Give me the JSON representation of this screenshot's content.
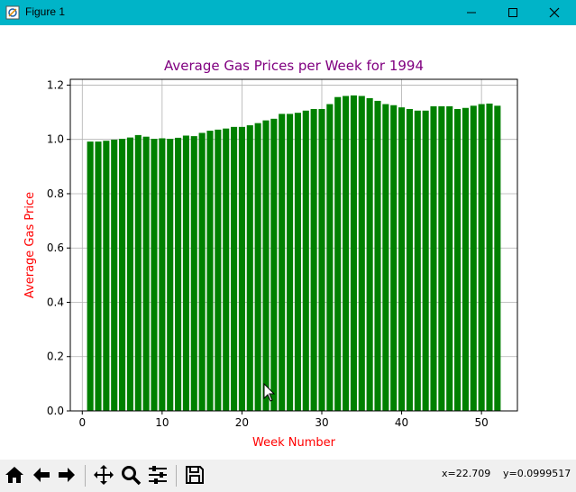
{
  "window": {
    "title": "Figure 1"
  },
  "toolbar": {
    "buttons": [
      "home-icon",
      "back-arrow-icon",
      "forward-arrow-icon",
      "pan-icon",
      "zoom-icon",
      "configure-subplots-icon",
      "save-icon"
    ],
    "coord_x": "x=22.709",
    "coord_y": "y=0.0999517"
  },
  "colors": {
    "titlebar": "#00b4c8",
    "bar": "#008000",
    "title": "#800080",
    "axis_label": "#ff0000"
  },
  "chart_data": {
    "type": "bar",
    "title": "Average Gas Prices per Week for 1994",
    "xlabel": "Week Number",
    "ylabel": "Average Gas Price",
    "x": [
      1,
      2,
      3,
      4,
      5,
      6,
      7,
      8,
      9,
      10,
      11,
      12,
      13,
      14,
      15,
      16,
      17,
      18,
      19,
      20,
      21,
      22,
      23,
      24,
      25,
      26,
      27,
      28,
      29,
      30,
      31,
      32,
      33,
      34,
      35,
      36,
      37,
      38,
      39,
      40,
      41,
      42,
      43,
      44,
      45,
      46,
      47,
      48,
      49,
      50,
      51,
      52
    ],
    "values": [
      0.992,
      0.992,
      0.995,
      0.999,
      1.002,
      1.007,
      1.016,
      1.01,
      1.002,
      1.004,
      1.002,
      1.006,
      1.014,
      1.012,
      1.024,
      1.032,
      1.036,
      1.04,
      1.046,
      1.046,
      1.052,
      1.06,
      1.07,
      1.076,
      1.094,
      1.094,
      1.098,
      1.106,
      1.112,
      1.112,
      1.13,
      1.156,
      1.16,
      1.162,
      1.16,
      1.152,
      1.142,
      1.13,
      1.126,
      1.118,
      1.112,
      1.106,
      1.106,
      1.122,
      1.122,
      1.122,
      1.112,
      1.116,
      1.124,
      1.13,
      1.132,
      1.124
    ],
    "xlim": [
      -1.5,
      54.5
    ],
    "ylim": [
      0,
      1.2214
    ],
    "xticks": [
      0,
      10,
      20,
      30,
      40,
      50
    ],
    "yticks": [
      0.0,
      0.2,
      0.4,
      0.6,
      0.8,
      1.0,
      1.2
    ],
    "xtick_labels": [
      "0",
      "10",
      "20",
      "30",
      "40",
      "50"
    ],
    "ytick_labels": [
      "0.0",
      "0.2",
      "0.4",
      "0.6",
      "0.8",
      "1.0",
      "1.2"
    ],
    "grid": true,
    "legend": false
  }
}
